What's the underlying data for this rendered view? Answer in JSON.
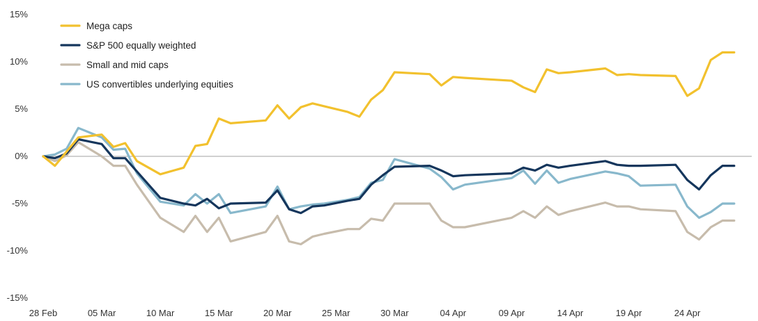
{
  "chart_data": {
    "type": "line",
    "title": "",
    "xlabel": "",
    "ylabel": "",
    "ylim": [
      -15,
      15
    ],
    "yticks": [
      "15%",
      "10%",
      "5%",
      "0%",
      "-5%",
      "-10%",
      "-15%"
    ],
    "ytick_values": [
      15,
      10,
      5,
      0,
      -5,
      -10,
      -15
    ],
    "xtick_labels": [
      "28 Feb",
      "05 Mar",
      "10 Mar",
      "15 Mar",
      "20 Mar",
      "25 Mar",
      "30 Mar",
      "04 Apr",
      "09 Apr",
      "14 Apr",
      "19 Apr",
      "24 Apr"
    ],
    "xtick_days": [
      0,
      5,
      10,
      15,
      20,
      25,
      30,
      35,
      40,
      45,
      50,
      55
    ],
    "xlim_days": [
      0,
      60.5
    ],
    "zero_line": true,
    "legend_position": "top-left",
    "x_days": [
      0,
      1,
      2,
      3,
      5,
      6,
      7,
      8,
      10,
      12,
      13,
      14,
      15,
      16,
      19,
      20,
      21,
      22,
      23,
      24,
      26,
      27,
      28,
      29,
      30,
      33,
      34,
      35,
      36,
      40,
      41,
      42,
      43,
      44,
      45,
      48,
      49,
      50,
      51,
      54,
      55,
      56,
      57,
      58,
      59
    ],
    "series": [
      {
        "name": "Mega caps",
        "color": "#f2c12e",
        "values": [
          0,
          -1,
          0.5,
          2,
          2.3,
          1.0,
          1.4,
          -0.5,
          -1.9,
          -1.2,
          1.1,
          1.3,
          4.0,
          3.5,
          3.8,
          5.4,
          4.0,
          5.2,
          5.6,
          5.3,
          4.7,
          4.2,
          6.0,
          7.0,
          8.9,
          8.7,
          7.5,
          8.4,
          8.3,
          8.0,
          7.3,
          6.8,
          9.2,
          8.8,
          8.9,
          9.3,
          8.6,
          8.7,
          8.6,
          8.5,
          6.4,
          7.2,
          10.2,
          11.0,
          11.0
        ]
      },
      {
        "name": "S&P 500 equally weighted",
        "color": "#15365c",
        "values": [
          0,
          -0.2,
          0.3,
          1.8,
          1.3,
          -0.2,
          -0.2,
          -1.6,
          -4.4,
          -5.0,
          -5.2,
          -4.5,
          -5.5,
          -5.0,
          -4.9,
          -3.6,
          -5.6,
          -6.0,
          -5.3,
          -5.2,
          -4.7,
          -4.5,
          -3.0,
          -2.0,
          -1.1,
          -1.0,
          -1.5,
          -2.1,
          -2.0,
          -1.8,
          -1.2,
          -1.5,
          -0.9,
          -1.2,
          -1.0,
          -0.5,
          -0.9,
          -1.0,
          -1.0,
          -0.9,
          -2.5,
          -3.5,
          -2.0,
          -1.0,
          -1.0
        ]
      },
      {
        "name": "Small and mid caps",
        "color": "#c7bcac",
        "values": [
          0,
          -0.5,
          0.1,
          1.5,
          0,
          -1.0,
          -1.0,
          -3.0,
          -6.5,
          -8.0,
          -6.3,
          -8.0,
          -6.5,
          -9.0,
          -8.0,
          -6.3,
          -9.0,
          -9.3,
          -8.5,
          -8.2,
          -7.7,
          -7.7,
          -6.6,
          -6.8,
          -5.0,
          -5.0,
          -6.8,
          -7.5,
          -7.5,
          -6.5,
          -5.8,
          -6.5,
          -5.3,
          -6.2,
          -5.8,
          -4.9,
          -5.3,
          -5.3,
          -5.6,
          -5.8,
          -8.0,
          -8.8,
          -7.5,
          -6.8,
          -6.8
        ]
      },
      {
        "name": "US convertibles underlying equities",
        "color": "#88b8cc",
        "values": [
          0,
          0.2,
          0.8,
          3.0,
          2.0,
          0.7,
          0.8,
          -1.8,
          -4.8,
          -5.2,
          -4.0,
          -5.0,
          -4.0,
          -6.0,
          -5.3,
          -3.2,
          -5.6,
          -5.3,
          -5.1,
          -5.0,
          -4.6,
          -4.3,
          -2.8,
          -2.5,
          -0.3,
          -1.3,
          -2.2,
          -3.5,
          -3.0,
          -2.3,
          -1.5,
          -2.9,
          -1.5,
          -2.8,
          -2.4,
          -1.6,
          -1.8,
          -2.1,
          -3.1,
          -3.0,
          -5.3,
          -6.5,
          -5.9,
          -5.0,
          -5.0
        ]
      }
    ]
  }
}
